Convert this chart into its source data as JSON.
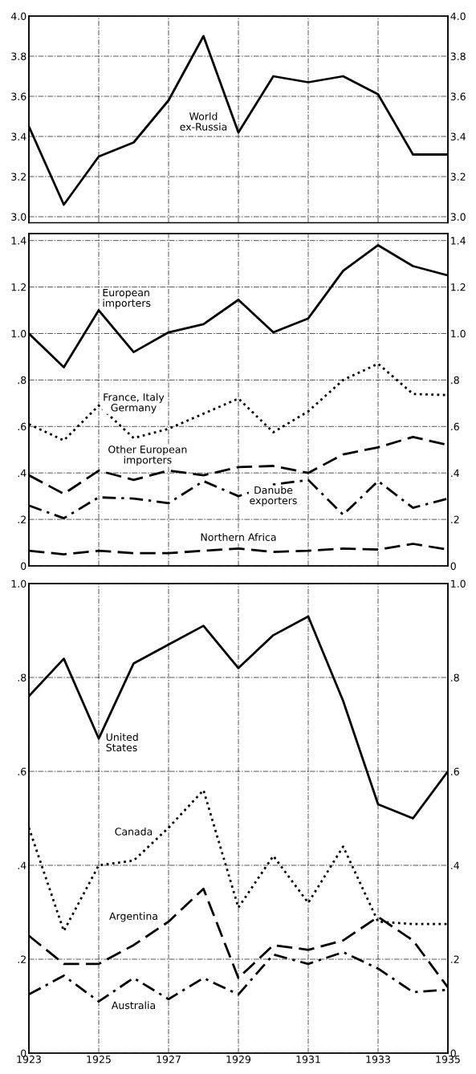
{
  "chart_data": [
    {
      "type": "line",
      "x": [
        1923,
        1924,
        1925,
        1926,
        1927,
        1928,
        1929,
        1930,
        1931,
        1932,
        1933,
        1934,
        1935
      ],
      "xlim": [
        1923,
        1935
      ],
      "xticks": [
        1923,
        1925,
        1927,
        1929,
        1931,
        1933,
        1935
      ],
      "ylim": [
        2.97,
        4.0
      ],
      "yticks": [
        {
          "value": 3.0,
          "label": "3.0"
        },
        {
          "value": 3.2,
          "label": "3.2"
        },
        {
          "value": 3.4,
          "label": "3.4"
        },
        {
          "value": 3.6,
          "label": "3.6"
        },
        {
          "value": 3.8,
          "label": "3.8"
        },
        {
          "value": 4.0,
          "label": "4.0"
        }
      ],
      "y2lim": [
        2.97,
        4.0
      ],
      "y2ticks": [
        {
          "value": 3.0,
          "label": "3.0"
        },
        {
          "value": 3.2,
          "label": "3.2"
        },
        {
          "value": 3.4,
          "label": "3.4"
        },
        {
          "value": 3.6,
          "label": "3.6"
        },
        {
          "value": 3.8,
          "label": "3.8"
        },
        {
          "value": 4.0,
          "label": "4.0"
        }
      ],
      "tick_labels": "y",
      "grid": true,
      "legend": false,
      "series": [
        {
          "name": "World\nex-Russia",
          "color": "#000000",
          "line_style": "solid",
          "values": [
            3.45,
            3.06,
            3.3,
            3.37,
            3.58,
            3.9,
            3.42,
            3.7,
            3.67,
            3.7,
            3.61,
            3.31,
            3.31
          ]
        }
      ]
    },
    {
      "type": "line",
      "x": [
        1923,
        1924,
        1925,
        1926,
        1927,
        1928,
        1929,
        1930,
        1931,
        1932,
        1933,
        1934,
        1935
      ],
      "xlim": [
        1923,
        1935
      ],
      "xticks": [
        1923,
        1925,
        1927,
        1929,
        1931,
        1933,
        1935
      ],
      "ylim": [
        0,
        1.43
      ],
      "yticks": [
        0,
        {
          "value": 0.2,
          "label": ".2"
        },
        {
          "value": 0.4,
          "label": ".4"
        },
        {
          "value": 0.6,
          "label": ".6"
        },
        {
          "value": 0.8,
          "label": ".8"
        },
        {
          "value": 1.0,
          "label": "1.0"
        },
        {
          "value": 1.2,
          "label": "1.2"
        },
        {
          "value": 1.4,
          "label": "1.4"
        }
      ],
      "y2lim": [
        0,
        1.43
      ],
      "y2ticks": [
        0,
        {
          "value": 0.2,
          "label": ".2"
        },
        {
          "value": 0.4,
          "label": ".4"
        },
        {
          "value": 0.6,
          "label": ".6"
        },
        {
          "value": 0.8,
          "label": ".8"
        },
        {
          "value": 1.0,
          "label": "1.0"
        },
        {
          "value": 1.2,
          "label": "1.2"
        },
        {
          "value": 1.4,
          "label": "1.4"
        }
      ],
      "tick_labels": "y",
      "grid": true,
      "legend": false,
      "series": [
        {
          "name": "European\nimporters",
          "color": "#000000",
          "line_style": "solid",
          "values": [
            1.0,
            0.855,
            1.1,
            0.92,
            1.005,
            1.04,
            1.145,
            1.005,
            1.065,
            1.27,
            1.38,
            1.29,
            1.25
          ]
        },
        {
          "name": "France, Italy\nGermany",
          "color": "#000000",
          "line_style": "dotted",
          "values": [
            0.61,
            0.54,
            0.69,
            0.55,
            0.59,
            0.655,
            0.72,
            0.575,
            0.665,
            0.8,
            0.87,
            0.74,
            0.735
          ]
        },
        {
          "name": "Other European\nimporters",
          "color": "#000000",
          "line_style": "dashed",
          "values": [
            0.39,
            0.31,
            0.41,
            0.37,
            0.41,
            0.39,
            0.425,
            0.43,
            0.4,
            0.48,
            0.51,
            0.555,
            0.52
          ]
        },
        {
          "name": "Danube\nexporters",
          "color": "#000000",
          "line_style": "dashdot",
          "values": [
            0.26,
            0.205,
            0.295,
            0.29,
            0.27,
            0.365,
            0.3,
            0.35,
            0.37,
            0.22,
            0.365,
            0.25,
            0.29
          ]
        },
        {
          "name": "Northern Africa",
          "color": "#000000",
          "line_style": "dashed",
          "values": [
            0.065,
            0.05,
            0.065,
            0.055,
            0.055,
            0.065,
            0.075,
            0.06,
            0.065,
            0.075,
            0.07,
            0.095,
            0.07
          ]
        }
      ]
    },
    {
      "type": "line",
      "x": [
        1923,
        1924,
        1925,
        1926,
        1927,
        1928,
        1929,
        1930,
        1931,
        1932,
        1933,
        1934,
        1935
      ],
      "xlim": [
        1923,
        1935
      ],
      "xticks": [
        1923,
        1925,
        1927,
        1929,
        1931,
        1933,
        1935
      ],
      "ylim": [
        0,
        1.0
      ],
      "yticks": [
        0,
        {
          "value": 0.2,
          "label": ".2"
        },
        {
          "value": 0.4,
          "label": ".4"
        },
        {
          "value": 0.6,
          "label": ".6"
        },
        {
          "value": 0.8,
          "label": ".8"
        },
        {
          "value": 1.0,
          "label": "1.0"
        }
      ],
      "y2lim": [
        0,
        1.0
      ],
      "y2ticks": [
        0,
        {
          "value": 0.2,
          "label": ".2"
        },
        {
          "value": 0.4,
          "label": ".4"
        },
        {
          "value": 0.6,
          "label": ".6"
        },
        {
          "value": 0.8,
          "label": ".8"
        },
        {
          "value": 1.0,
          "label": "1.0"
        }
      ],
      "grid": true,
      "legend": false,
      "series": [
        {
          "name": "United\nStates",
          "color": "#000000",
          "line_style": "solid",
          "values": [
            0.76,
            0.84,
            0.67,
            0.83,
            0.87,
            0.91,
            0.82,
            0.89,
            0.93,
            0.75,
            0.53,
            0.5,
            0.6
          ]
        },
        {
          "name": "Canada",
          "color": "#000000",
          "line_style": "dotted",
          "values": [
            0.48,
            0.26,
            0.4,
            0.41,
            0.48,
            0.56,
            0.31,
            0.42,
            0.32,
            0.44,
            0.28,
            0.275,
            0.275
          ]
        },
        {
          "name": "Argentina",
          "color": "#000000",
          "line_style": "dashed",
          "values": [
            0.25,
            0.19,
            0.19,
            0.23,
            0.28,
            0.35,
            0.16,
            0.23,
            0.22,
            0.24,
            0.29,
            0.24,
            0.14
          ]
        },
        {
          "name": "Australia",
          "color": "#000000",
          "line_style": "dashdot",
          "values": [
            0.125,
            0.165,
            0.11,
            0.16,
            0.115,
            0.16,
            0.125,
            0.21,
            0.19,
            0.215,
            0.18,
            0.13,
            0.135
          ]
        }
      ]
    }
  ]
}
